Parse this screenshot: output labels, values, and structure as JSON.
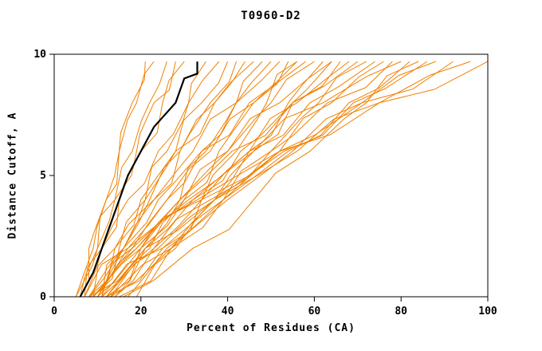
{
  "chart_data": {
    "type": "line",
    "title": "T0960-D2",
    "xlabel": "Percent of Residues (CA)",
    "ylabel": "Distance Cutoff, A",
    "xlim": [
      0,
      100
    ],
    "ylim": [
      0,
      10
    ],
    "xticks": [
      0,
      20,
      40,
      60,
      80,
      100
    ],
    "yticks": [
      0,
      5,
      10
    ],
    "grid": false,
    "legend": "none",
    "prediction_color": "#f08000",
    "highlight_color": "#000000",
    "y_levels": [
      0,
      2,
      4,
      6,
      8,
      9.7
    ],
    "predictions": [
      [
        5,
        9,
        12,
        15,
        18,
        21
      ],
      [
        6,
        10,
        14,
        18,
        22,
        26
      ],
      [
        7,
        11,
        15,
        20,
        25,
        30
      ],
      [
        8,
        16,
        21,
        26,
        31,
        35
      ],
      [
        7,
        11,
        17,
        24,
        31,
        38
      ],
      [
        9,
        15,
        21,
        28,
        34,
        40
      ],
      [
        8,
        16,
        23,
        29,
        36,
        42
      ],
      [
        10,
        16,
        22,
        29,
        37,
        44
      ],
      [
        9,
        14,
        20,
        28,
        37,
        46
      ],
      [
        11,
        21,
        29,
        35,
        42,
        48
      ],
      [
        10,
        18,
        26,
        34,
        42,
        50
      ],
      [
        8,
        14,
        23,
        32,
        42,
        52
      ],
      [
        12,
        22,
        30,
        38,
        46,
        54
      ],
      [
        9,
        17,
        26,
        36,
        46,
        56
      ],
      [
        11,
        16,
        24,
        34,
        45,
        58
      ],
      [
        10,
        20,
        30,
        40,
        50,
        60
      ],
      [
        13,
        27,
        37,
        45,
        54,
        62
      ],
      [
        12,
        20,
        29,
        40,
        52,
        64
      ],
      [
        9,
        20,
        32,
        43,
        55,
        66
      ],
      [
        14,
        23,
        34,
        45,
        56,
        68
      ],
      [
        11,
        18,
        29,
        41,
        55,
        70
      ],
      [
        13,
        27,
        39,
        50,
        61,
        72
      ],
      [
        10,
        19,
        31,
        45,
        59,
        74
      ],
      [
        15,
        27,
        39,
        52,
        64,
        76
      ],
      [
        12,
        23,
        36,
        50,
        63,
        78
      ],
      [
        14,
        21,
        32,
        46,
        62,
        80
      ],
      [
        11,
        25,
        39,
        54,
        68,
        82
      ],
      [
        16,
        32,
        46,
        59,
        72,
        84
      ],
      [
        13,
        24,
        37,
        53,
        69,
        86
      ],
      [
        12,
        25,
        40,
        55,
        71,
        88
      ],
      [
        9,
        19,
        34,
        52,
        71,
        92
      ],
      [
        8,
        21,
        37,
        56,
        75,
        96
      ],
      [
        7,
        17,
        33,
        52,
        75,
        100
      ],
      [
        17,
        26,
        34,
        42,
        49,
        56
      ],
      [
        19,
        28,
        37,
        46,
        55,
        64
      ],
      [
        6,
        8,
        12,
        15,
        19,
        23
      ],
      [
        5,
        10,
        14,
        19,
        23,
        28
      ]
    ],
    "highlight": {
      "name": "best-model-curve",
      "points": [
        [
          6,
          0
        ],
        [
          9,
          1
        ],
        [
          11,
          2
        ],
        [
          13,
          3
        ],
        [
          15,
          4
        ],
        [
          17,
          5
        ],
        [
          20,
          6
        ],
        [
          23,
          7
        ],
        [
          28,
          8
        ],
        [
          30,
          9
        ],
        [
          33,
          9.2
        ],
        [
          33,
          9.7
        ]
      ]
    }
  }
}
